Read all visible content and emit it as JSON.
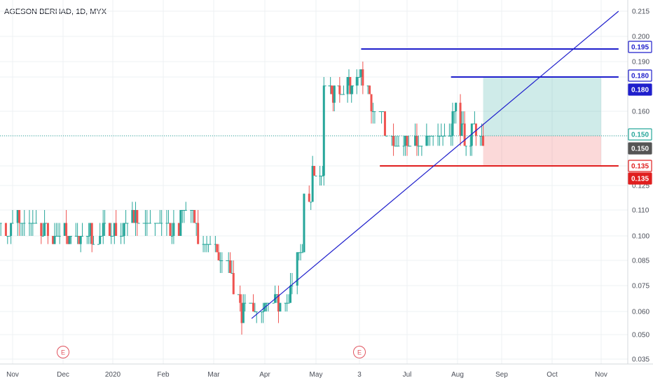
{
  "chart_data": {
    "type": "candlestick",
    "title": "AGESON BERHAD, 1D, MYX",
    "y_ticks": [
      "0.035",
      "0.050",
      "0.060",
      "0.075",
      "0.085",
      "0.100",
      "0.110",
      "0.125",
      "0.135",
      "0.150",
      "0.160",
      "0.180",
      "0.190",
      "0.200",
      "0.215"
    ],
    "x_ticks": [
      {
        "label": "Nov",
        "date": "2019-11-01"
      },
      {
        "label": "Dec",
        "date": "2019-12-01"
      },
      {
        "label": "2020",
        "date": "2020-01-01"
      },
      {
        "label": "Feb",
        "date": "2020-02-01"
      },
      {
        "label": "Mar",
        "date": "2020-03-01"
      },
      {
        "label": "Apr",
        "date": "2020-04-01"
      },
      {
        "label": "May",
        "date": "2020-05-01"
      },
      {
        "label": "3",
        "date": "2020-06-03"
      },
      {
        "label": "Jul",
        "date": "2020-07-01"
      },
      {
        "label": "Aug",
        "date": "2020-08-01"
      },
      {
        "label": "Sep",
        "date": "2020-09-01"
      },
      {
        "label": "Oct",
        "date": "2020-10-01"
      },
      {
        "label": "Nov",
        "date": "2020-11-01"
      }
    ],
    "price_path": [
      {
        "date": "2019-10-22",
        "price": 0.105
      },
      {
        "date": "2019-11-05",
        "price": 0.105
      },
      {
        "date": "2019-11-25",
        "price": 0.1
      },
      {
        "date": "2019-12-20",
        "price": 0.1
      },
      {
        "date": "2020-01-10",
        "price": 0.105
      },
      {
        "date": "2020-01-20",
        "price": 0.11
      },
      {
        "date": "2020-02-01",
        "price": 0.1
      },
      {
        "date": "2020-02-15",
        "price": 0.105
      },
      {
        "date": "2020-02-25",
        "price": 0.095
      },
      {
        "date": "2020-03-05",
        "price": 0.09
      },
      {
        "date": "2020-03-12",
        "price": 0.075
      },
      {
        "date": "2020-03-18",
        "price": 0.06
      },
      {
        "date": "2020-03-25",
        "price": 0.06
      },
      {
        "date": "2020-04-05",
        "price": 0.065
      },
      {
        "date": "2020-04-15",
        "price": 0.07
      },
      {
        "date": "2020-04-20",
        "price": 0.09
      },
      {
        "date": "2020-04-23",
        "price": 0.115
      },
      {
        "date": "2020-04-27",
        "price": 0.12
      },
      {
        "date": "2020-05-01",
        "price": 0.14
      },
      {
        "date": "2020-05-05",
        "price": 0.175
      },
      {
        "date": "2020-05-10",
        "price": 0.175
      },
      {
        "date": "2020-05-20",
        "price": 0.165
      },
      {
        "date": "2020-06-01",
        "price": 0.185
      },
      {
        "date": "2020-06-05",
        "price": 0.175
      },
      {
        "date": "2020-06-15",
        "price": 0.145
      },
      {
        "date": "2020-06-25",
        "price": 0.15
      },
      {
        "date": "2020-07-10",
        "price": 0.15
      },
      {
        "date": "2020-07-20",
        "price": 0.145
      },
      {
        "date": "2020-07-28",
        "price": 0.165
      },
      {
        "date": "2020-08-05",
        "price": 0.15
      },
      {
        "date": "2020-08-19",
        "price": 0.15
      }
    ],
    "horizontal_lines": [
      {
        "price": 0.195,
        "label": "0.195",
        "color": "#1f1fcc",
        "from": "2020-06-04",
        "to": "2020-11-12"
      },
      {
        "price": 0.18,
        "label": "0.180",
        "color": "#1f1fcc",
        "from": "2020-07-28",
        "to": "2020-11-12"
      },
      {
        "price": 0.135,
        "label": "0.135",
        "color": "#e01f1f",
        "from": "2020-06-15",
        "to": "2020-11-12"
      }
    ],
    "trendline": {
      "from": {
        "date": "2020-03-24",
        "price": 0.057
      },
      "to": {
        "date": "2020-11-12",
        "price": 0.215
      },
      "color": "#1f1fcc"
    },
    "position": {
      "entry": 0.15,
      "target": 0.18,
      "stop": 0.135,
      "from": "2020-08-19",
      "to": "2020-11-01"
    },
    "last_price": 0.15,
    "price_tags": [
      {
        "label": "0.195",
        "color": "#1f1fcc",
        "style": "outline"
      },
      {
        "label": "0.180",
        "color": "#1f1fcc",
        "style": "outline"
      },
      {
        "label": "0.180",
        "color": "#1f1fcc",
        "style": "solid"
      },
      {
        "label": "0.150",
        "color": "#26a69a",
        "style": "outline"
      },
      {
        "label": "0.150",
        "color": "#555555",
        "style": "solid"
      },
      {
        "label": "0.135",
        "color": "#e01f1f",
        "style": "outline"
      },
      {
        "label": "0.135",
        "color": "#e01f1f",
        "style": "solid"
      }
    ],
    "earnings_markers": [
      {
        "label": "E",
        "date": "2019-12-01"
      },
      {
        "label": "E",
        "date": "2020-06-03"
      }
    ],
    "colors": {
      "up": "#26a69a",
      "down": "#ef5350",
      "grid": "#eef0f3",
      "axis_text": "#4a4e58"
    }
  }
}
